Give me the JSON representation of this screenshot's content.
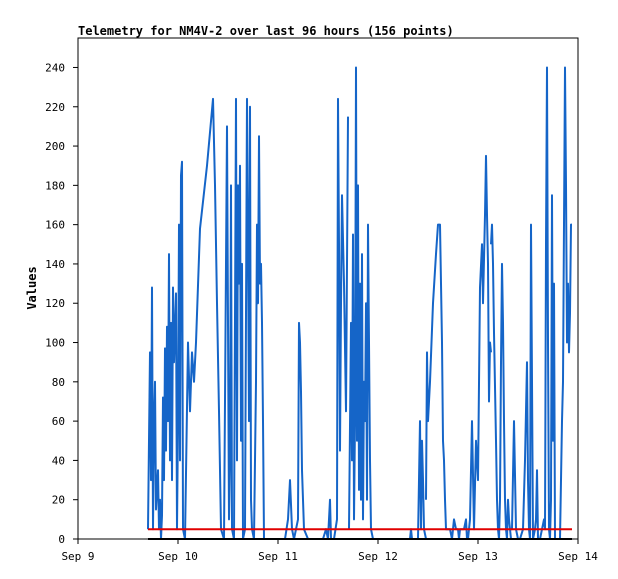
{
  "chart_data": {
    "type": "line",
    "title": "Telemetry for NM4V-2 over last 96 hours (156 points)",
    "xlabel": "",
    "ylabel": "Values",
    "xlim": [
      0,
      5
    ],
    "ylim": [
      0,
      255
    ],
    "x_tick_positions": [
      0,
      1,
      2,
      3,
      4,
      5
    ],
    "x_tick_labels": [
      "Sep 9",
      "Sep 10",
      "Sep 11",
      "Sep 12",
      "Sep 13",
      "Sep 14"
    ],
    "y_ticks": [
      0,
      20,
      40,
      60,
      80,
      100,
      120,
      140,
      160,
      180,
      200,
      220,
      240
    ],
    "grid": false,
    "series": [
      {
        "color": "#1565c8",
        "points": [
          [
            0.7,
            5
          ],
          [
            0.72,
            95
          ],
          [
            0.73,
            30
          ],
          [
            0.74,
            128
          ],
          [
            0.75,
            5
          ],
          [
            0.76,
            60
          ],
          [
            0.77,
            80
          ],
          [
            0.78,
            15
          ],
          [
            0.8,
            35
          ],
          [
            0.81,
            5
          ],
          [
            0.82,
            20
          ],
          [
            0.83,
            0
          ],
          [
            0.84,
            12
          ],
          [
            0.85,
            72
          ],
          [
            0.86,
            30
          ],
          [
            0.87,
            97
          ],
          [
            0.88,
            45
          ],
          [
            0.89,
            108
          ],
          [
            0.9,
            60
          ],
          [
            0.91,
            145
          ],
          [
            0.92,
            40
          ],
          [
            0.93,
            110
          ],
          [
            0.94,
            30
          ],
          [
            0.95,
            128
          ],
          [
            0.96,
            90
          ],
          [
            0.98,
            125
          ],
          [
            0.99,
            5
          ],
          [
            1.0,
            60
          ],
          [
            1.01,
            160
          ],
          [
            1.02,
            40
          ],
          [
            1.03,
            185
          ],
          [
            1.04,
            192
          ],
          [
            1.05,
            5
          ],
          [
            1.07,
            0
          ],
          [
            1.1,
            100
          ],
          [
            1.12,
            65
          ],
          [
            1.14,
            95
          ],
          [
            1.16,
            80
          ],
          [
            1.18,
            100
          ],
          [
            1.22,
            158
          ],
          [
            1.29,
            190
          ],
          [
            1.35,
            224
          ],
          [
            1.37,
            180
          ],
          [
            1.39,
            120
          ],
          [
            1.41,
            65
          ],
          [
            1.43,
            5
          ],
          [
            1.46,
            0
          ],
          [
            1.49,
            210
          ],
          [
            1.51,
            10
          ],
          [
            1.52,
            40
          ],
          [
            1.53,
            180
          ],
          [
            1.54,
            5
          ],
          [
            1.56,
            0
          ],
          [
            1.58,
            224
          ],
          [
            1.59,
            40
          ],
          [
            1.6,
            180
          ],
          [
            1.61,
            130
          ],
          [
            1.62,
            190
          ],
          [
            1.63,
            50
          ],
          [
            1.64,
            140
          ],
          [
            1.65,
            0
          ],
          [
            1.67,
            5
          ],
          [
            1.69,
            224
          ],
          [
            1.7,
            150
          ],
          [
            1.71,
            60
          ],
          [
            1.72,
            220
          ],
          [
            1.73,
            20
          ],
          [
            1.74,
            5
          ],
          [
            1.76,
            0
          ],
          [
            1.78,
            80
          ],
          [
            1.79,
            160
          ],
          [
            1.8,
            120
          ],
          [
            1.81,
            205
          ],
          [
            1.82,
            130
          ],
          [
            1.83,
            140
          ],
          [
            1.84,
            110
          ],
          [
            1.85,
            60
          ],
          [
            1.86,
            0
          ],
          [
            1.88,
            0
          ],
          [
            1.92,
            0
          ],
          [
            1.96,
            0
          ],
          [
            2.0,
            0
          ],
          [
            2.04,
            0
          ],
          [
            2.07,
            0
          ],
          [
            2.1,
            10
          ],
          [
            2.12,
            30
          ],
          [
            2.14,
            5
          ],
          [
            2.16,
            0
          ],
          [
            2.2,
            10
          ],
          [
            2.21,
            110
          ],
          [
            2.22,
            100
          ],
          [
            2.23,
            75
          ],
          [
            2.24,
            35
          ],
          [
            2.26,
            5
          ],
          [
            2.3,
            0
          ],
          [
            2.35,
            0
          ],
          [
            2.4,
            0
          ],
          [
            2.45,
            0
          ],
          [
            2.48,
            5
          ],
          [
            2.5,
            0
          ],
          [
            2.52,
            20
          ],
          [
            2.53,
            0
          ],
          [
            2.56,
            0
          ],
          [
            2.59,
            10
          ],
          [
            2.6,
            224
          ],
          [
            2.61,
            150
          ],
          [
            2.62,
            45
          ],
          [
            2.63,
            120
          ],
          [
            2.64,
            175
          ],
          [
            2.66,
            130
          ],
          [
            2.68,
            65
          ],
          [
            2.7,
            215
          ]
        ]
      },
      {
        "color": "#1565c8",
        "points": [
          [
            2.71,
            5
          ],
          [
            2.73,
            110
          ],
          [
            2.74,
            40
          ],
          [
            2.75,
            155
          ],
          [
            2.76,
            10
          ],
          [
            2.77,
            60
          ],
          [
            2.78,
            240
          ],
          [
            2.79,
            50
          ],
          [
            2.8,
            180
          ],
          [
            2.81,
            25
          ],
          [
            2.82,
            130
          ],
          [
            2.83,
            20
          ],
          [
            2.84,
            145
          ],
          [
            2.85,
            10
          ],
          [
            2.86,
            80
          ],
          [
            2.87,
            60
          ],
          [
            2.88,
            120
          ],
          [
            2.89,
            20
          ],
          [
            2.9,
            160
          ],
          [
            2.91,
            100
          ],
          [
            2.92,
            40
          ],
          [
            2.93,
            5
          ],
          [
            2.95,
            0
          ],
          [
            2.98,
            0
          ],
          [
            3.0,
            0
          ],
          [
            3.02,
            0
          ],
          [
            3.05,
            0
          ],
          [
            3.1,
            0
          ],
          [
            3.15,
            0
          ],
          [
            3.2,
            0
          ],
          [
            3.22,
            0
          ],
          [
            3.24,
            0
          ],
          [
            3.26,
            0
          ],
          [
            3.28,
            0
          ],
          [
            3.3,
            0
          ],
          [
            3.32,
            0
          ],
          [
            3.33,
            5
          ],
          [
            3.34,
            0
          ],
          [
            3.36,
            0
          ],
          [
            3.38,
            0
          ],
          [
            3.4,
            0
          ],
          [
            3.42,
            60
          ],
          [
            3.43,
            5
          ],
          [
            3.44,
            50
          ],
          [
            3.45,
            30
          ],
          [
            3.46,
            5
          ],
          [
            3.48,
            0
          ]
        ]
      },
      {
        "color": "#1565c8",
        "points": [
          [
            3.48,
            20
          ],
          [
            3.49,
            95
          ],
          [
            3.5,
            60
          ],
          [
            3.52,
            80
          ],
          [
            3.55,
            120
          ],
          [
            3.58,
            145
          ],
          [
            3.6,
            160
          ],
          [
            3.62,
            160
          ],
          [
            3.63,
            130
          ],
          [
            3.64,
            100
          ],
          [
            3.65,
            50
          ],
          [
            3.66,
            40
          ],
          [
            3.67,
            20
          ],
          [
            3.68,
            5
          ],
          [
            3.7,
            5
          ],
          [
            3.72,
            5
          ],
          [
            3.74,
            0
          ],
          [
            3.76,
            10
          ],
          [
            3.78,
            5
          ],
          [
            3.8,
            5
          ],
          [
            3.81,
            0
          ],
          [
            3.82,
            5
          ],
          [
            3.84,
            5
          ],
          [
            3.86,
            5
          ],
          [
            3.88,
            10
          ],
          [
            3.89,
            0
          ],
          [
            3.9,
            0
          ],
          [
            3.92,
            10
          ],
          [
            3.94,
            60
          ],
          [
            3.96,
            5
          ],
          [
            3.98,
            50
          ],
          [
            4.0,
            30
          ],
          [
            4.02,
            128
          ],
          [
            4.04,
            150
          ],
          [
            4.05,
            120
          ],
          [
            4.07,
            165
          ],
          [
            4.08,
            195
          ],
          [
            4.09,
            165
          ],
          [
            4.1,
            140
          ],
          [
            4.11,
            70
          ],
          [
            4.12,
            100
          ],
          [
            4.13,
            95
          ]
        ]
      },
      {
        "color": "#1565c8",
        "points": [
          [
            4.13,
            150
          ],
          [
            4.14,
            160
          ],
          [
            4.15,
            140
          ],
          [
            4.16,
            105
          ],
          [
            4.18,
            50
          ],
          [
            4.19,
            20
          ],
          [
            4.2,
            5
          ],
          [
            4.21,
            0
          ],
          [
            4.22,
            20
          ],
          [
            4.23,
            90
          ],
          [
            4.24,
            140
          ],
          [
            4.25,
            110
          ],
          [
            4.26,
            60
          ],
          [
            4.27,
            20
          ],
          [
            4.28,
            5
          ],
          [
            4.29,
            0
          ],
          [
            4.3,
            20
          ],
          [
            4.31,
            10
          ],
          [
            4.32,
            5
          ],
          [
            4.33,
            0
          ]
        ]
      },
      {
        "color": "#1565c8",
        "points": [
          [
            4.33,
            5
          ],
          [
            4.34,
            5
          ],
          [
            4.36,
            60
          ],
          [
            4.38,
            5
          ],
          [
            4.4,
            0
          ],
          [
            4.42,
            0
          ],
          [
            4.45,
            5
          ],
          [
            4.47,
            40
          ],
          [
            4.49,
            90
          ],
          [
            4.5,
            30
          ],
          [
            4.51,
            5
          ],
          [
            4.52,
            0
          ],
          [
            4.53,
            160
          ],
          [
            4.55,
            0
          ],
          [
            4.57,
            5
          ],
          [
            4.58,
            10
          ],
          [
            4.59,
            35
          ],
          [
            4.6,
            0
          ],
          [
            4.62,
            0
          ],
          [
            4.64,
            5
          ],
          [
            4.66,
            10
          ],
          [
            4.67,
            5
          ],
          [
            4.68,
            150
          ],
          [
            4.69,
            240
          ],
          [
            4.7,
            100
          ],
          [
            4.71,
            5
          ],
          [
            4.72,
            0
          ],
          [
            4.73,
            20
          ],
          [
            4.74,
            175
          ],
          [
            4.75,
            50
          ],
          [
            4.76,
            130
          ],
          [
            4.77,
            0
          ],
          [
            4.78,
            0
          ],
          [
            4.79,
            0
          ],
          [
            4.8,
            0
          ],
          [
            4.82,
            0
          ],
          [
            4.84,
            60
          ],
          [
            4.85,
            80
          ],
          [
            4.87,
            240
          ],
          [
            4.88,
            180
          ],
          [
            4.89,
            100
          ],
          [
            4.9,
            130
          ],
          [
            4.91,
            95
          ],
          [
            4.92,
            115
          ],
          [
            4.93,
            160
          ],
          [
            4.94,
            160
          ]
        ]
      },
      {
        "color": "#e00000",
        "points": [
          [
            0.7,
            5
          ],
          [
            4.94,
            5
          ]
        ]
      },
      {
        "color": "#000000",
        "points": [
          [
            0.7,
            0
          ],
          [
            4.94,
            0
          ]
        ]
      }
    ]
  }
}
